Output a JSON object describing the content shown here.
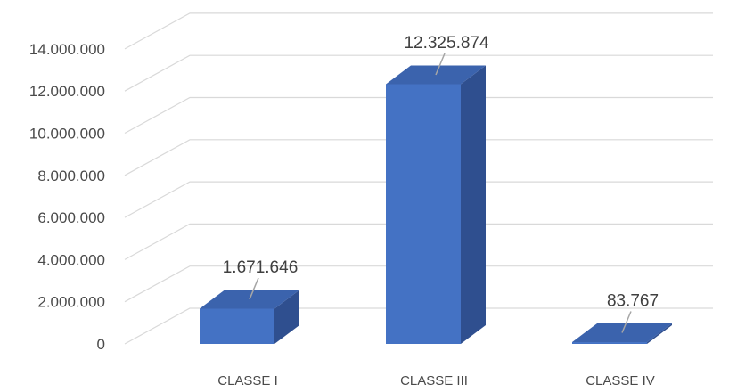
{
  "chart_data": {
    "type": "bar",
    "title": "",
    "xlabel": "",
    "ylabel": "",
    "categories": [
      "CLASSE I",
      "CLASSE III",
      "CLASSE IV"
    ],
    "values": [
      1671646,
      12325874,
      83767
    ],
    "data_labels": [
      "1.671.646",
      "12.325.874",
      "83.767"
    ],
    "ylim": [
      0,
      14000000
    ],
    "y_ticks": [
      0,
      2000000,
      4000000,
      6000000,
      8000000,
      10000000,
      12000000,
      14000000
    ],
    "y_tick_labels": [
      "0",
      "2.000.000",
      "4.000.000",
      "6.000.000",
      "8.000.000",
      "10.000.000",
      "12.000.000",
      "14.000.000"
    ],
    "grid": true,
    "style": "3d-column",
    "legend": "none"
  },
  "colors": {
    "bar_front": "#4472c4",
    "bar_side": "#2f4f8f",
    "bar_top": "#3b63ad",
    "gridline": "#d9d9d9",
    "text": "#4a4a4a",
    "leader": "#a6a6a6"
  }
}
